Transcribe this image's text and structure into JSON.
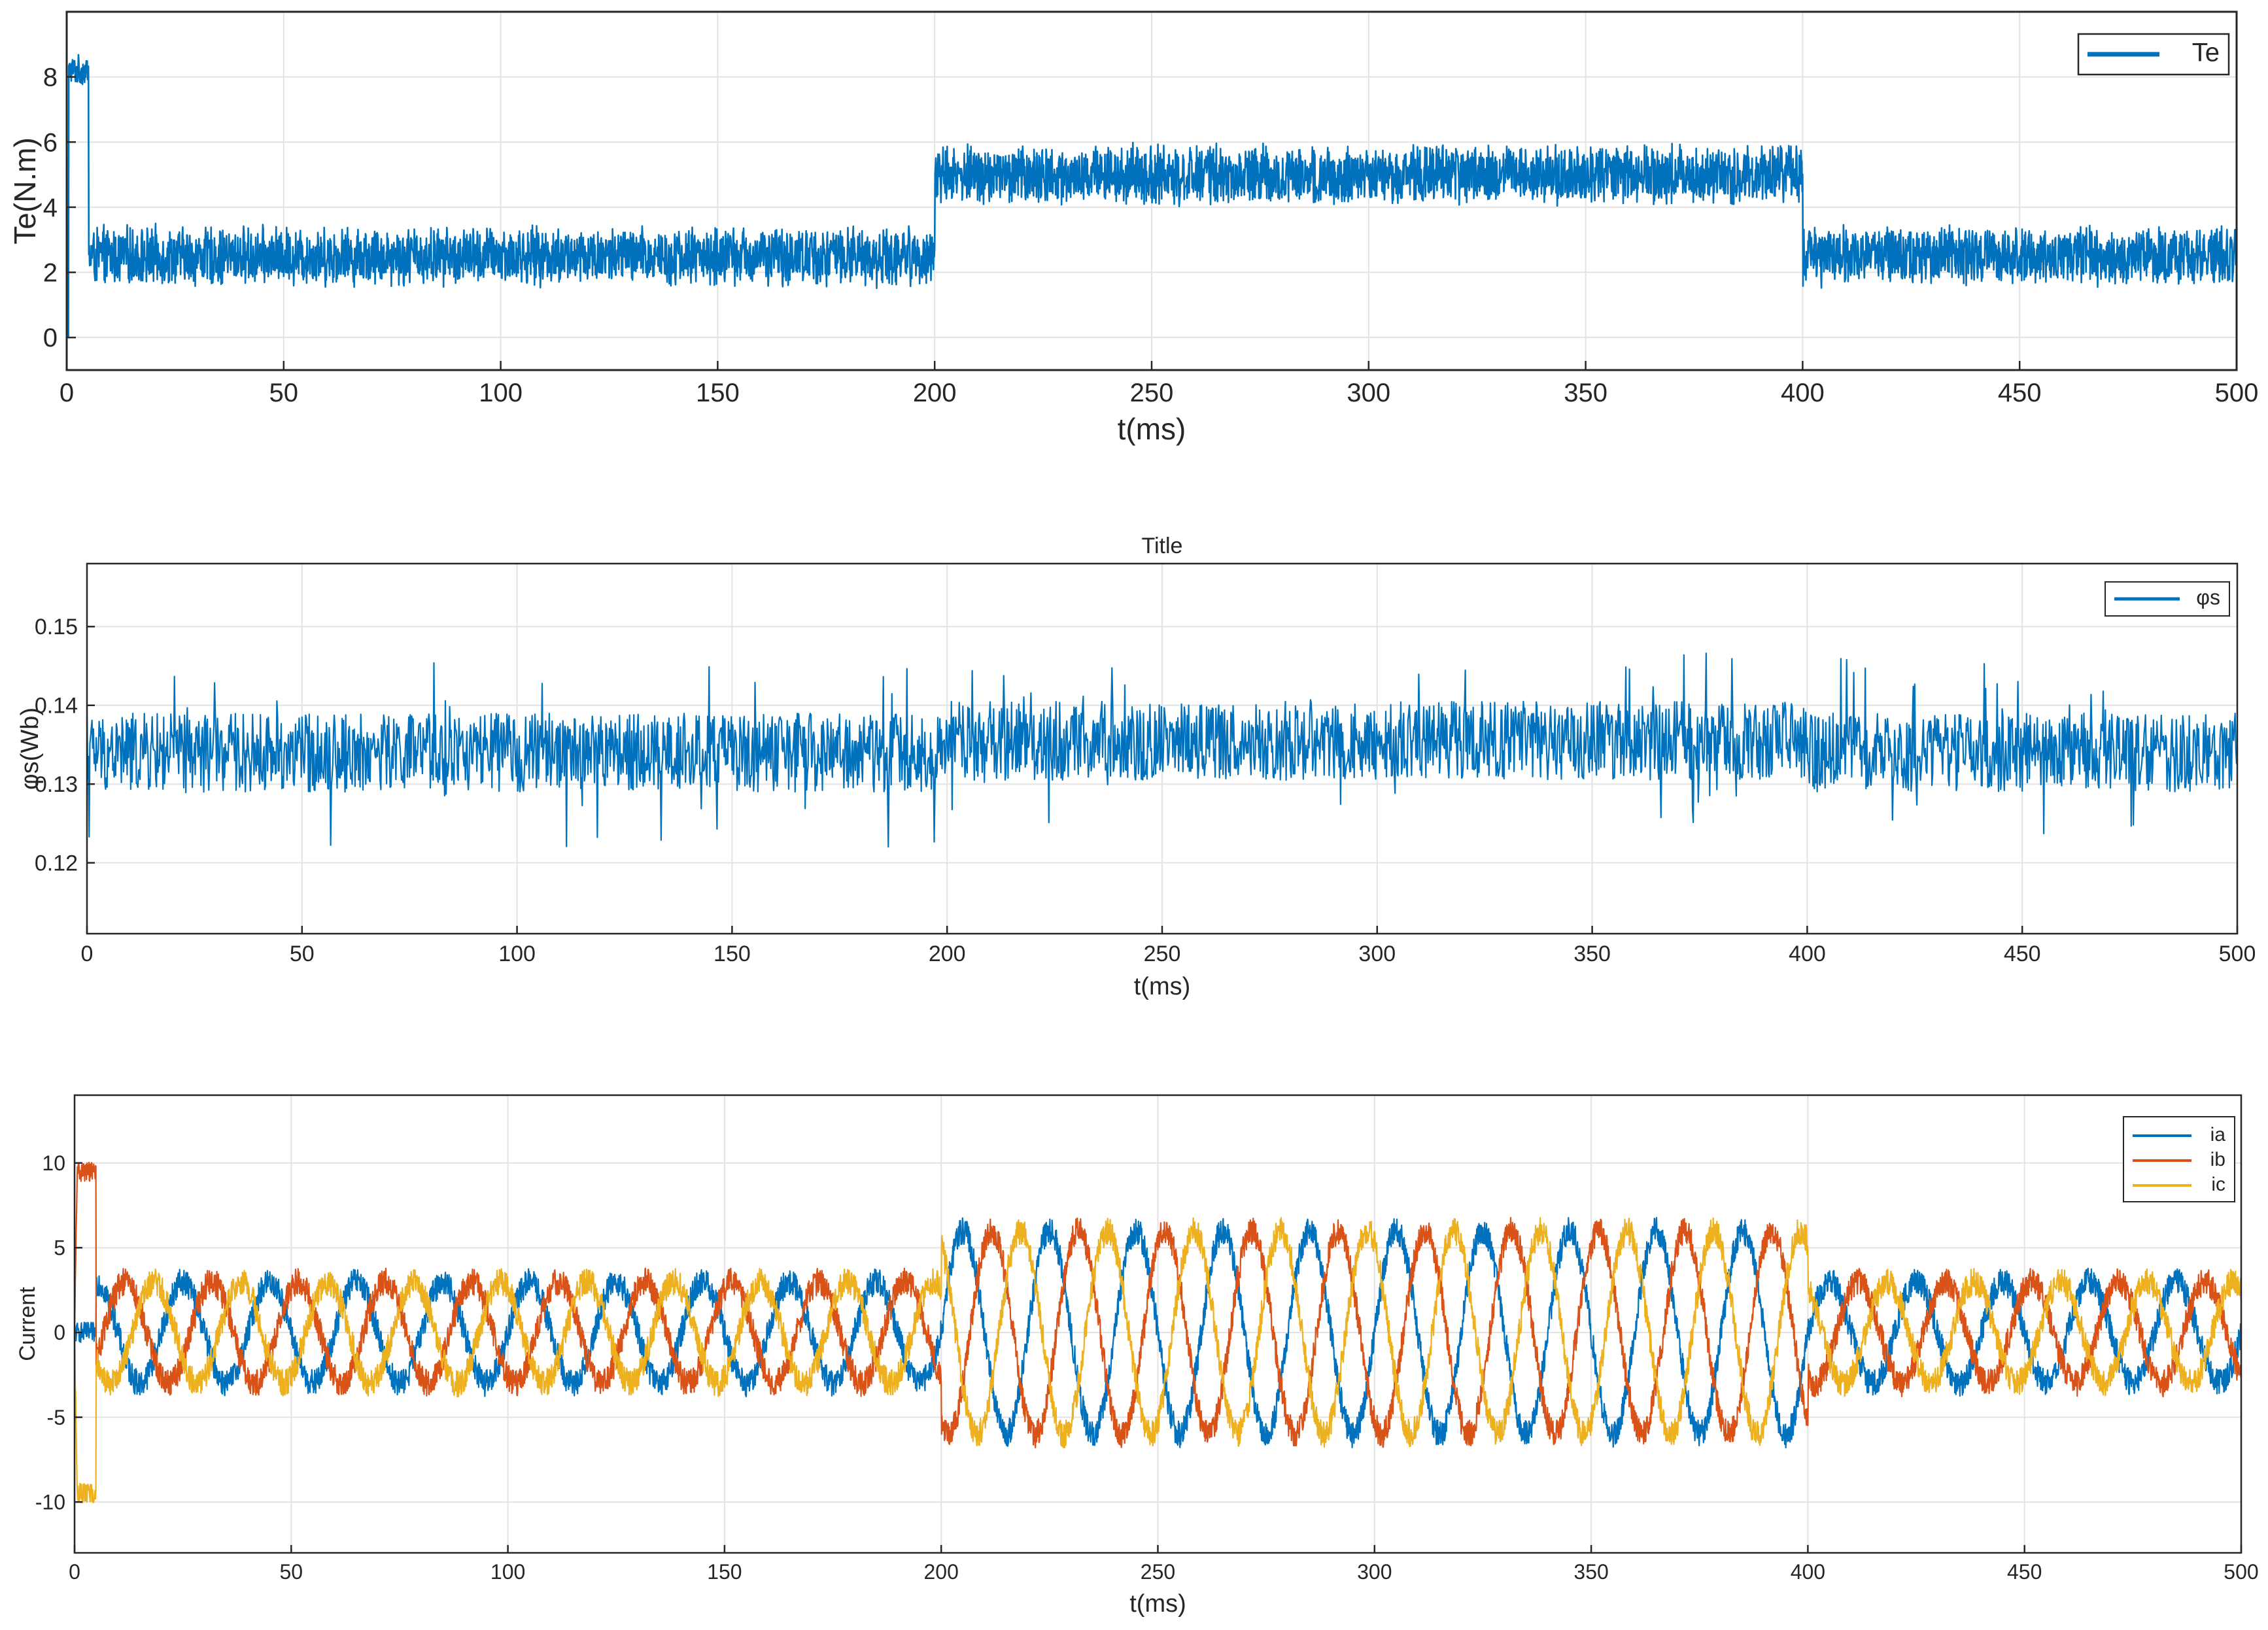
{
  "chart_data": [
    {
      "type": "line",
      "title": "",
      "xlabel": "t(ms)",
      "ylabel": "Te(N.m)",
      "xlim": [
        0,
        500
      ],
      "ylim": [
        -1,
        10
      ],
      "xticks": [
        0,
        50,
        100,
        150,
        200,
        250,
        300,
        350,
        400,
        450,
        500
      ],
      "yticks": [
        0,
        2,
        4,
        6,
        8
      ],
      "grid": true,
      "legend_position": "top-right",
      "series": [
        {
          "name": "Te",
          "color": "#0072BD",
          "waveform": "noisy_torque",
          "segments": [
            {
              "t_start": 0,
              "t_end": 5,
              "mean": 8.2,
              "ripple": 0.5
            },
            {
              "t_start": 5,
              "t_end": 200,
              "mean": 2.5,
              "ripple": 1.0
            },
            {
              "t_start": 200,
              "t_end": 400,
              "mean": 5.0,
              "ripple": 1.0
            },
            {
              "t_start": 400,
              "t_end": 500,
              "mean": 2.5,
              "ripple": 1.0
            }
          ]
        }
      ]
    },
    {
      "type": "line",
      "title": "Title",
      "xlabel": "t(ms)",
      "ylabel": "φs(Wb)",
      "xlim": [
        0,
        500
      ],
      "ylim": [
        0.111,
        0.158
      ],
      "xticks": [
        0,
        50,
        100,
        150,
        200,
        250,
        300,
        350,
        400,
        450,
        500
      ],
      "yticks": [
        0.12,
        0.13,
        0.14,
        0.15
      ],
      "yticklabels": [
        "0.12",
        "0.13",
        "0.14",
        "0.15"
      ],
      "grid": true,
      "legend_position": "top-right",
      "series": [
        {
          "name": "φs",
          "color": "#0072BD",
          "waveform": "noisy_flux",
          "segments": [
            {
              "t_start": 0,
              "t_end": 200,
              "mean": 0.134,
              "ripple": 0.005
            },
            {
              "t_start": 200,
              "t_end": 400,
              "mean": 0.1355,
              "ripple": 0.005
            },
            {
              "t_start": 400,
              "t_end": 500,
              "mean": 0.134,
              "ripple": 0.005
            }
          ]
        }
      ]
    },
    {
      "type": "line",
      "title": "",
      "xlabel": "t(ms)",
      "ylabel": "Current",
      "xlim": [
        0,
        500
      ],
      "ylim": [
        -13,
        14
      ],
      "xticks": [
        0,
        50,
        100,
        150,
        200,
        250,
        300,
        350,
        400,
        450,
        500
      ],
      "yticks": [
        -10,
        -5,
        0,
        5,
        10
      ],
      "grid": true,
      "legend_position": "top-right",
      "frequency_hz": 50,
      "series": [
        {
          "name": "ia",
          "color": "#0072BD",
          "phase_deg": 0,
          "amplitude": [
            {
              "t_start": 5,
              "t_end": 200,
              "amp": 3.0
            },
            {
              "t_start": 200,
              "t_end": 400,
              "amp": 6.0
            },
            {
              "t_start": 400,
              "t_end": 500,
              "amp": 3.0
            }
          ],
          "startup": {
            "t_end": 5,
            "value": 0
          }
        },
        {
          "name": "ib",
          "color": "#D95319",
          "phase_deg": -120,
          "amplitude": [
            {
              "t_start": 5,
              "t_end": 200,
              "amp": 3.0
            },
            {
              "t_start": 200,
              "t_end": 400,
              "amp": 6.0
            },
            {
              "t_start": 400,
              "t_end": 500,
              "amp": 3.0
            }
          ],
          "startup": {
            "t_end": 5,
            "value": 9.5
          }
        },
        {
          "name": "ic",
          "color": "#EDB120",
          "phase_deg": 120,
          "amplitude": [
            {
              "t_start": 5,
              "t_end": 200,
              "amp": 3.0
            },
            {
              "t_start": 200,
              "t_end": 400,
              "amp": 6.0
            },
            {
              "t_start": 400,
              "t_end": 500,
              "amp": 3.0
            }
          ],
          "startup": {
            "t_end": 5,
            "value": -9.5
          }
        }
      ]
    }
  ]
}
